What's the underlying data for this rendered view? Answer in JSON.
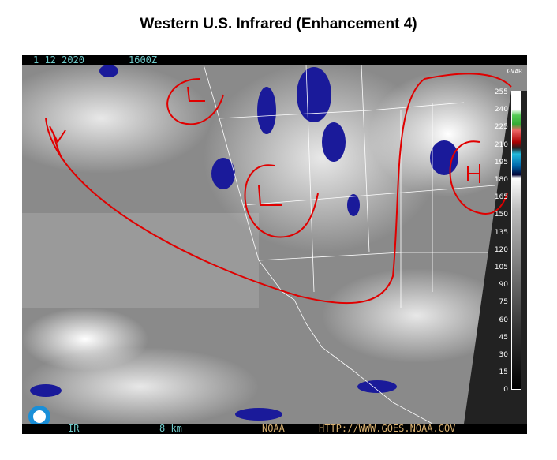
{
  "title": "Western U.S. Infrared (Enhancement 4)",
  "header": {
    "date": "1  12 2020",
    "time": "1600Z",
    "corner": "GVAR"
  },
  "footer": {
    "channel": "IR",
    "resolution": "8 km",
    "agency": "NOAA",
    "url": "HTTP://WWW.GOES.NOAA.GOV"
  },
  "scale": {
    "labels": [
      "255",
      "240",
      "225",
      "210",
      "195",
      "180",
      "165",
      "150",
      "135",
      "120",
      "105",
      "90",
      "75",
      "60",
      "45",
      "30",
      "15",
      "0"
    ]
  },
  "annotations": {
    "lows": [
      "L",
      "L"
    ],
    "high": "H",
    "color": "#e00000"
  },
  "colors": {
    "cloud_cold": "#1a1a9a",
    "annotation": "#e00000"
  }
}
